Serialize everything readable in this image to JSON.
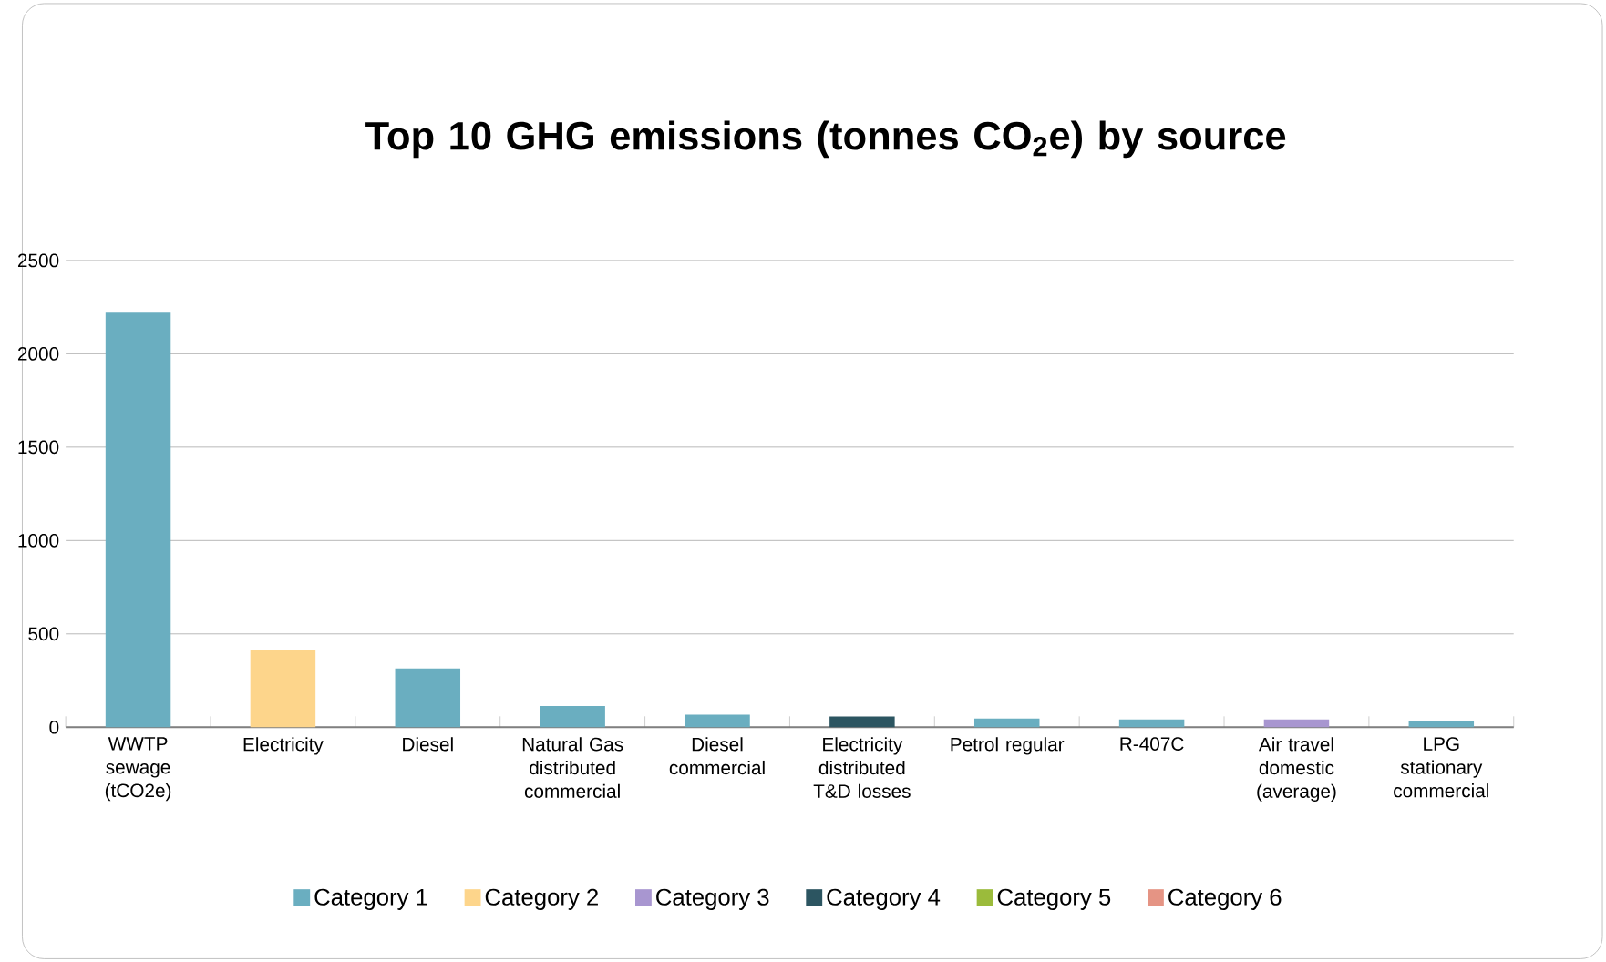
{
  "chart_data": {
    "type": "bar",
    "title": "Top 10 GHG emissions (tonnes CO$_{2}$e) by source",
    "categories": [
      "WWTP sewage (tCO2e)",
      "Electricity",
      "Diesel",
      "Natural Gas distributed commercial",
      "Diesel commercial",
      "Electricity distributed T&D losses",
      "Petrol regular",
      "R-407C",
      "Air travel domestic (average)",
      "LPG stationary commercial"
    ],
    "series": [
      {
        "name": "Category 1",
        "color": "#6aaec0",
        "values": [
          2220,
          null,
          315,
          113,
          67,
          null,
          46,
          41,
          null,
          31
        ]
      },
      {
        "name": "Category 2",
        "color": "#fdd58b",
        "values": [
          null,
          412,
          null,
          null,
          null,
          null,
          null,
          null,
          null,
          null
        ]
      },
      {
        "name": "Category 3",
        "color": "#a896d0",
        "values": [
          null,
          null,
          null,
          null,
          null,
          null,
          null,
          null,
          41,
          null
        ]
      },
      {
        "name": "Category 4",
        "color": "#2c5561",
        "values": [
          null,
          null,
          null,
          null,
          null,
          57,
          null,
          null,
          null,
          null
        ]
      },
      {
        "name": "Category 5",
        "color": "#9bbb3b",
        "values": [
          null,
          null,
          null,
          null,
          null,
          null,
          null,
          null,
          null,
          null
        ]
      },
      {
        "name": "Category 6",
        "color": "#e59484",
        "values": [
          null,
          null,
          null,
          null,
          null,
          null,
          null,
          null,
          null,
          null
        ]
      }
    ],
    "stacked": true,
    "ylim": [
      0,
      2500
    ],
    "yticks": [
      0,
      500,
      1000,
      1500,
      2000,
      2500
    ],
    "grid": "y",
    "legend": "bottom"
  }
}
